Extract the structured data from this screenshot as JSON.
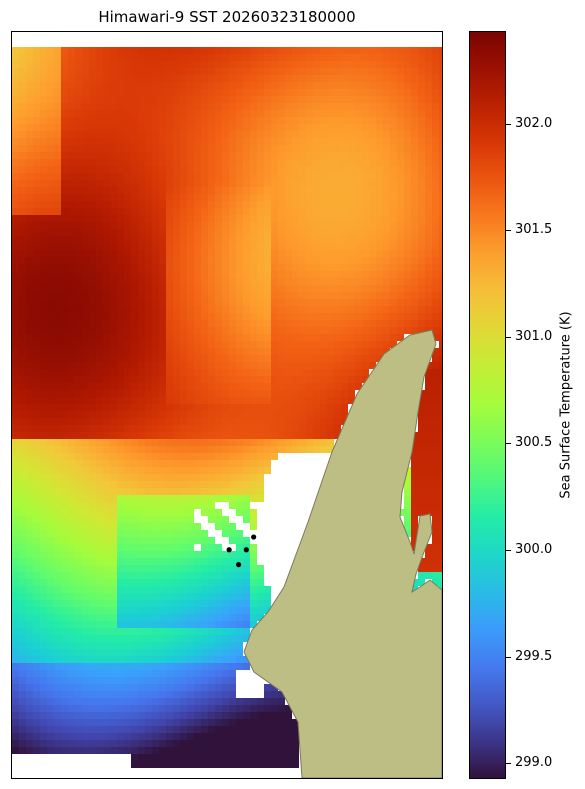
{
  "chart_data": {
    "type": "heatmap",
    "title": "Himawari-9 SST 20260323180000",
    "colorbar": {
      "label": "Sea Surface Temperature (K)",
      "range": [
        298.93,
        302.43
      ],
      "ticks": [
        "299.0",
        "299.5",
        "300.0",
        "300.5",
        "301.0",
        "301.5",
        "302.0"
      ],
      "tick_values": [
        299.0,
        299.5,
        300.0,
        300.5,
        301.0,
        301.5,
        302.0
      ],
      "colormap": "turbo"
    },
    "points": [
      {
        "lon_frac": 0.505,
        "lat_frac": 0.694
      },
      {
        "lon_frac": 0.545,
        "lat_frac": 0.694
      },
      {
        "lon_frac": 0.562,
        "lat_frac": 0.677
      },
      {
        "lon_frac": 0.527,
        "lat_frac": 0.714
      }
    ],
    "land_color": "#bdbe83",
    "missing_color": "#ffffff"
  }
}
